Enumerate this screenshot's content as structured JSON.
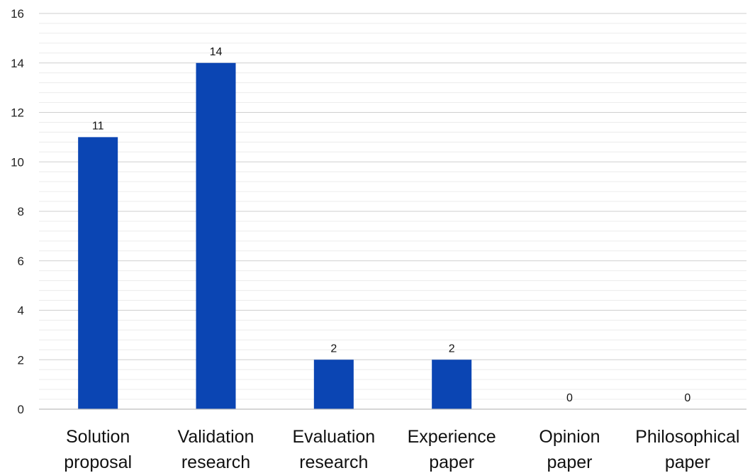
{
  "chart_data": {
    "type": "bar",
    "categories": [
      [
        "Solution",
        "proposal"
      ],
      [
        "Validation",
        "research"
      ],
      [
        "Evaluation",
        "research"
      ],
      [
        "Experience",
        "paper"
      ],
      [
        "Opinion",
        "paper"
      ],
      [
        "Philosophical",
        "paper"
      ]
    ],
    "values": [
      11,
      14,
      2,
      2,
      0,
      0
    ],
    "ylim": [
      0,
      16
    ],
    "yticks": [
      0,
      2,
      4,
      6,
      8,
      10,
      12,
      14,
      16
    ],
    "grid": true,
    "data_labels": true,
    "bar_color": "#0B45B3"
  }
}
